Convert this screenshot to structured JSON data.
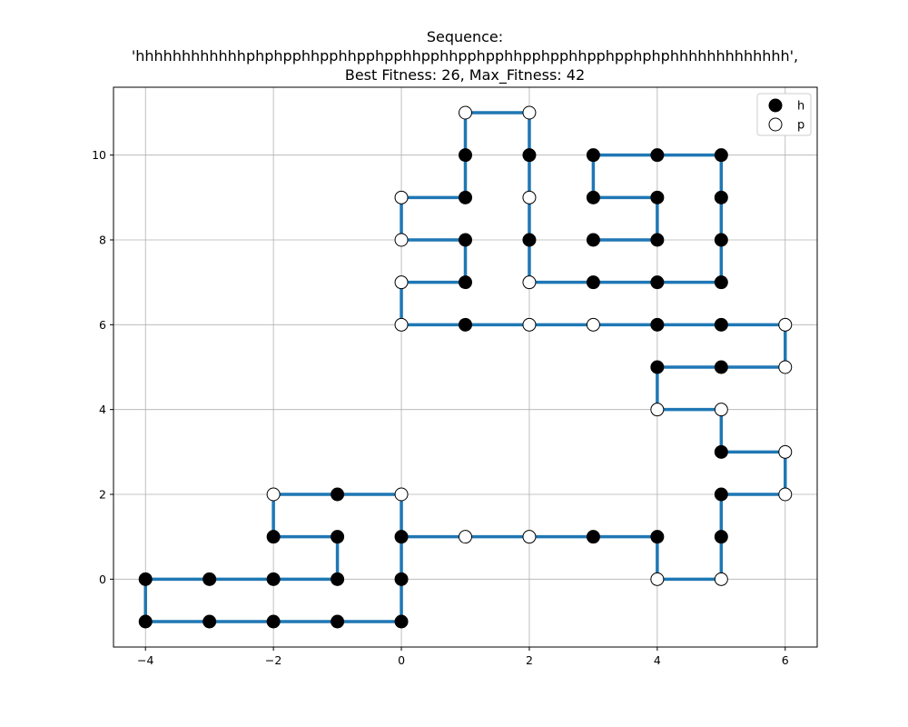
{
  "chart_data": {
    "type": "line",
    "title_lines": [
      "Sequence:",
      "'hhhhhhhhhhhhphphpphhpphhpphpphhpphhpphpphhpphpphhpphpphphphhhhhhhhhhhhh',",
      "Best Fitness: 26, Max_Fitness: 42"
    ],
    "xlabel": "",
    "ylabel": "",
    "xlim": [
      -4.5,
      6.5
    ],
    "ylim": [
      -1.6,
      11.6
    ],
    "xticks": [
      -4,
      -2,
      0,
      2,
      4,
      6
    ],
    "xtick_labels": [
      "−4",
      "−2",
      "0",
      "2",
      "4",
      "6"
    ],
    "yticks": [
      0,
      2,
      4,
      6,
      8,
      10
    ],
    "ytick_labels": [
      "0",
      "2",
      "4",
      "6",
      "8",
      "10"
    ],
    "grid": true,
    "legend_position": "top-right",
    "legend": [
      {
        "label": "h",
        "marker": "filled-circle"
      },
      {
        "label": "p",
        "marker": "open-circle"
      }
    ],
    "line_color": "#1f77b4",
    "h_color": "#000000",
    "p_color": "#ffffff",
    "chain": [
      [
        -4,
        0,
        "h"
      ],
      [
        -4,
        -1,
        "h"
      ],
      [
        -3,
        -1,
        "h"
      ],
      [
        -2,
        -1,
        "h"
      ],
      [
        -1,
        -1,
        "h"
      ],
      [
        0,
        -1,
        "h"
      ],
      [
        0,
        0,
        "h"
      ],
      [
        0,
        1,
        "h"
      ],
      [
        1,
        1,
        "p"
      ],
      [
        2,
        1,
        "p"
      ],
      [
        3,
        1,
        "h"
      ],
      [
        4,
        1,
        "h"
      ],
      [
        4,
        0,
        "p"
      ],
      [
        5,
        0,
        "p"
      ],
      [
        5,
        1,
        "h"
      ],
      [
        5,
        2,
        "h"
      ],
      [
        6,
        2,
        "p"
      ],
      [
        6,
        3,
        "p"
      ],
      [
        5,
        3,
        "h"
      ],
      [
        5,
        4,
        "p"
      ],
      [
        4,
        4,
        "p"
      ],
      [
        4,
        5,
        "h"
      ],
      [
        5,
        5,
        "h"
      ],
      [
        6,
        5,
        "p"
      ],
      [
        6,
        6,
        "p"
      ],
      [
        5,
        6,
        "h"
      ],
      [
        4,
        6,
        "h"
      ],
      [
        3,
        6,
        "p"
      ],
      [
        2,
        6,
        "p"
      ],
      [
        1,
        6,
        "h"
      ],
      [
        0,
        6,
        "p"
      ],
      [
        0,
        7,
        "p"
      ],
      [
        1,
        7,
        "h"
      ],
      [
        1,
        8,
        "h"
      ],
      [
        0,
        8,
        "p"
      ],
      [
        0,
        9,
        "p"
      ],
      [
        1,
        9,
        "h"
      ],
      [
        1,
        10,
        "h"
      ],
      [
        1,
        11,
        "p"
      ],
      [
        2,
        11,
        "p"
      ],
      [
        2,
        10,
        "h"
      ],
      [
        2,
        9,
        "p"
      ],
      [
        2,
        8,
        "h"
      ],
      [
        2,
        7,
        "p"
      ],
      [
        3,
        7,
        "h"
      ],
      [
        4,
        7,
        "h"
      ],
      [
        5,
        7,
        "h"
      ],
      [
        5,
        8,
        "h"
      ],
      [
        5,
        9,
        "h"
      ],
      [
        5,
        10,
        "h"
      ],
      [
        4,
        10,
        "h"
      ],
      [
        3,
        10,
        "h"
      ],
      [
        3,
        9,
        "h"
      ],
      [
        4,
        9,
        "h"
      ],
      [
        4,
        8,
        "h"
      ],
      [
        3,
        8,
        "h"
      ]
    ],
    "extra_segment": [
      [
        -4,
        0,
        "h"
      ],
      [
        -3,
        0,
        "h"
      ],
      [
        -2,
        0,
        "h"
      ],
      [
        -1,
        0,
        "h"
      ],
      [
        -1,
        1,
        "h"
      ],
      [
        -2,
        1,
        "h"
      ],
      [
        -2,
        2,
        "p"
      ],
      [
        -1,
        2,
        "h"
      ],
      [
        0,
        2,
        "p"
      ],
      [
        0,
        1,
        "h"
      ]
    ]
  }
}
